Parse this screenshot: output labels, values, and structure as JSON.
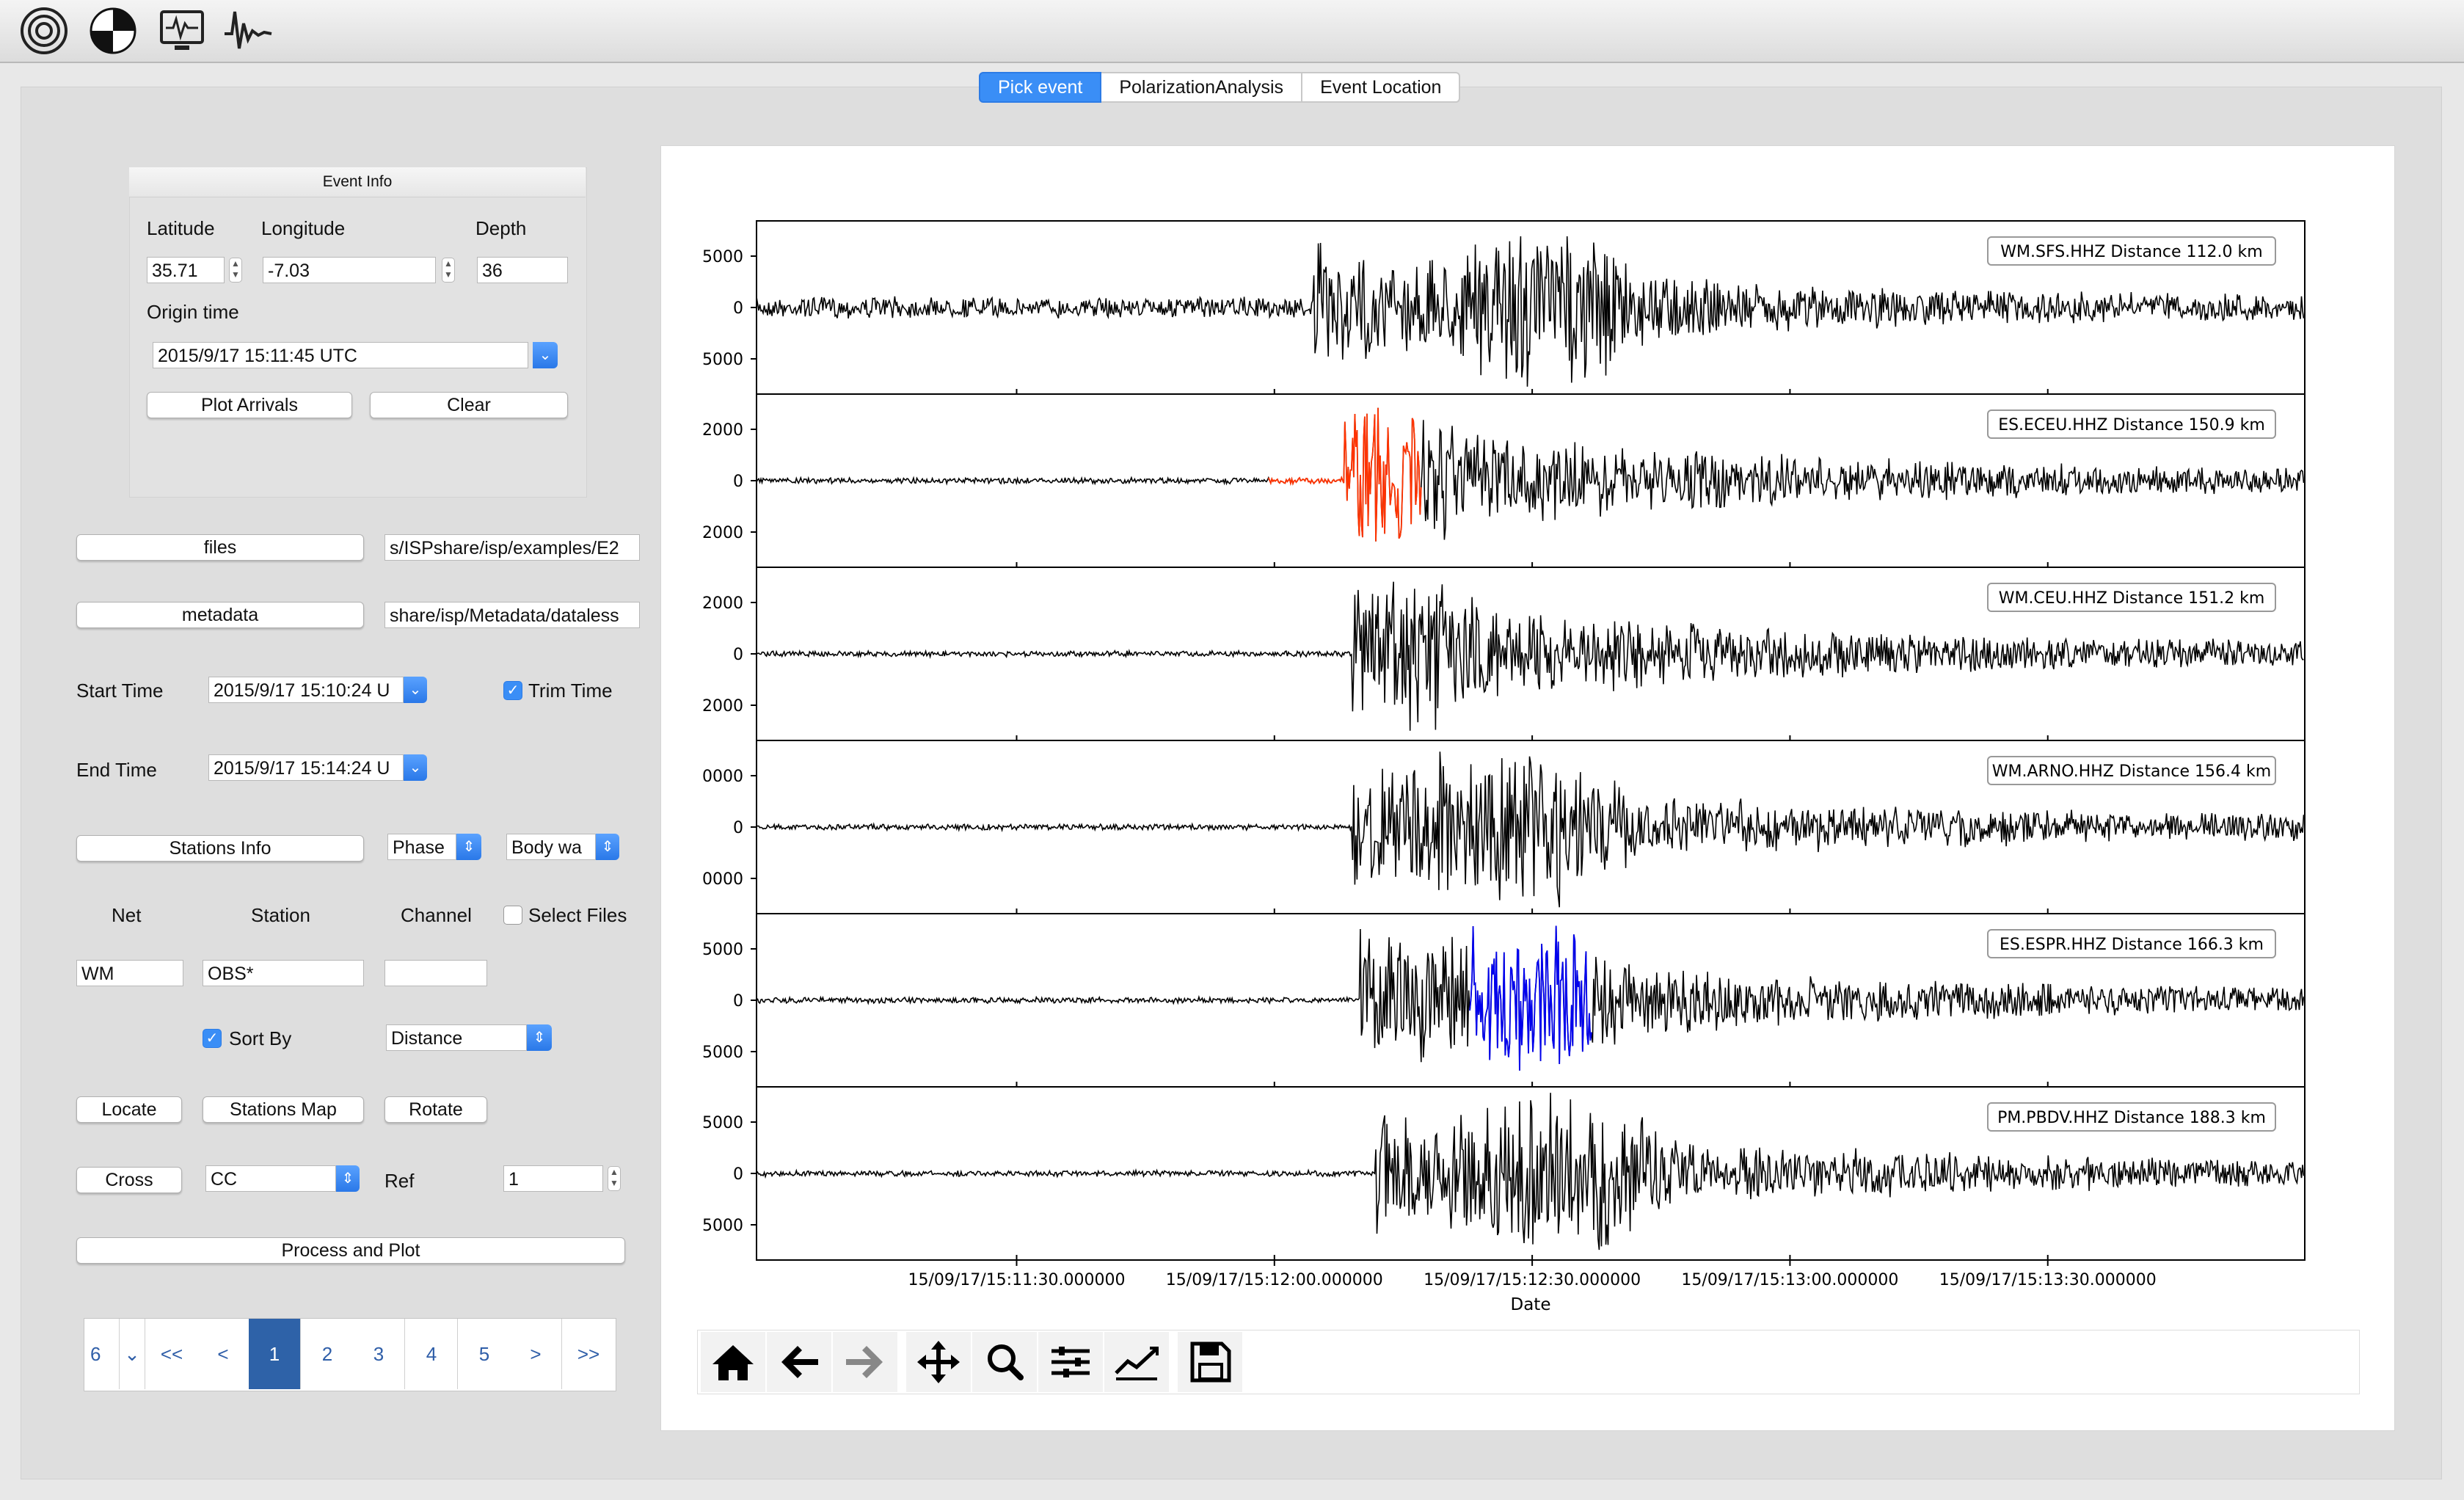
{
  "toolbar": {
    "icons": [
      "seismogram-rings-icon",
      "focal-mechanism-icon",
      "monitor-waveform-icon",
      "waveform-icon"
    ]
  },
  "tabs": [
    {
      "label": "Pick event",
      "active": true
    },
    {
      "label": "PolarizationAnalysis",
      "active": false
    },
    {
      "label": "Event Location",
      "active": false
    }
  ],
  "event_info": {
    "title": "Event Info",
    "latitude_label": "Latitude",
    "longitude_label": "Longitude",
    "depth_label": "Depth",
    "latitude": "35.71",
    "longitude": "-7.03",
    "depth": "36",
    "origin_time_label": "Origin time",
    "origin_time": "2015/9/17 15:11:45 UTC",
    "plot_arrivals": "Plot Arrivals",
    "clear": "Clear"
  },
  "files": {
    "button": "files",
    "path": "s/ISPshare/isp/examples/E2"
  },
  "metadata": {
    "button": "metadata",
    "path": "share/isp/Metadata/dataless"
  },
  "time": {
    "start_label": "Start Time",
    "start_value": "2015/9/17 15:10:24 U",
    "end_label": "End Time",
    "end_value": "2015/9/17 15:14:24 U",
    "trim_label": "Trim Time",
    "trim_checked": true
  },
  "stations": {
    "info_button": "Stations Info",
    "phase": "Phase",
    "wave": "Body wa"
  },
  "filters": {
    "net_label": "Net",
    "station_label": "Station",
    "channel_label": "Channel",
    "select_files_label": "Select Files",
    "net_value": "WM",
    "station_value": "OBS*",
    "channel_value": ""
  },
  "sort": {
    "label": "Sort  By",
    "checked": true,
    "value": "Distance"
  },
  "actions": {
    "locate": "Locate",
    "stations_map": "Stations Map",
    "rotate": "Rotate",
    "cross": "Cross",
    "cross_mode": "CC",
    "ref_label": "Ref",
    "ref_value": "1",
    "process_plot": "Process and Plot"
  },
  "pagination": {
    "per_page": "6",
    "items": [
      "<<",
      "<",
      "1",
      "2",
      "3",
      "4",
      "5",
      ">",
      ">>"
    ],
    "active": "1"
  },
  "plot": {
    "xlabel": "Date",
    "xticks": [
      "15/09/17/15:11:30.000000",
      "15/09/17/15:12:00.000000",
      "15/09/17/15:12:30.000000",
      "15/09/17/15:13:00.000000",
      "15/09/17/15:13:30.000000"
    ],
    "traces": [
      {
        "label": "WM.SFS.HHZ Distance 112.0 km",
        "yticks": [
          "5000",
          "0",
          "5000"
        ],
        "onset": 0.36,
        "peak": 0.52,
        "highlight": null
      },
      {
        "label": "ES.ECEU.HHZ Distance 150.9 km",
        "yticks": [
          "2000",
          "0",
          "2000"
        ],
        "onset": 0.38,
        "peak": 0.38,
        "highlight": "#ff3300"
      },
      {
        "label": "WM.CEU.HHZ Distance 151.2 km",
        "yticks": [
          "2000",
          "0",
          "2000"
        ],
        "onset": 0.385,
        "peak": 0.39,
        "highlight": null
      },
      {
        "label": "WM.ARNO.HHZ Distance 156.4 km",
        "yticks": [
          "0000",
          "0",
          "0000"
        ],
        "onset": 0.385,
        "peak": 0.49,
        "highlight": null
      },
      {
        "label": "ES.ESPR.HHZ Distance 166.3 km",
        "yticks": [
          "5000",
          "0",
          "5000"
        ],
        "onset": 0.39,
        "peak": 0.49,
        "highlight": "#0000ee"
      },
      {
        "label": "PM.PBDV.HHZ Distance 188.3 km",
        "yticks": [
          "5000",
          "0",
          "5000"
        ],
        "onset": 0.4,
        "peak": 0.52,
        "highlight": null
      }
    ]
  },
  "navbar": {
    "icons": [
      "home-icon",
      "back-arrow-icon",
      "forward-arrow-icon",
      "pan-icon",
      "zoom-icon",
      "configure-subplots-icon",
      "edit-axis-icon",
      "save-icon"
    ]
  }
}
